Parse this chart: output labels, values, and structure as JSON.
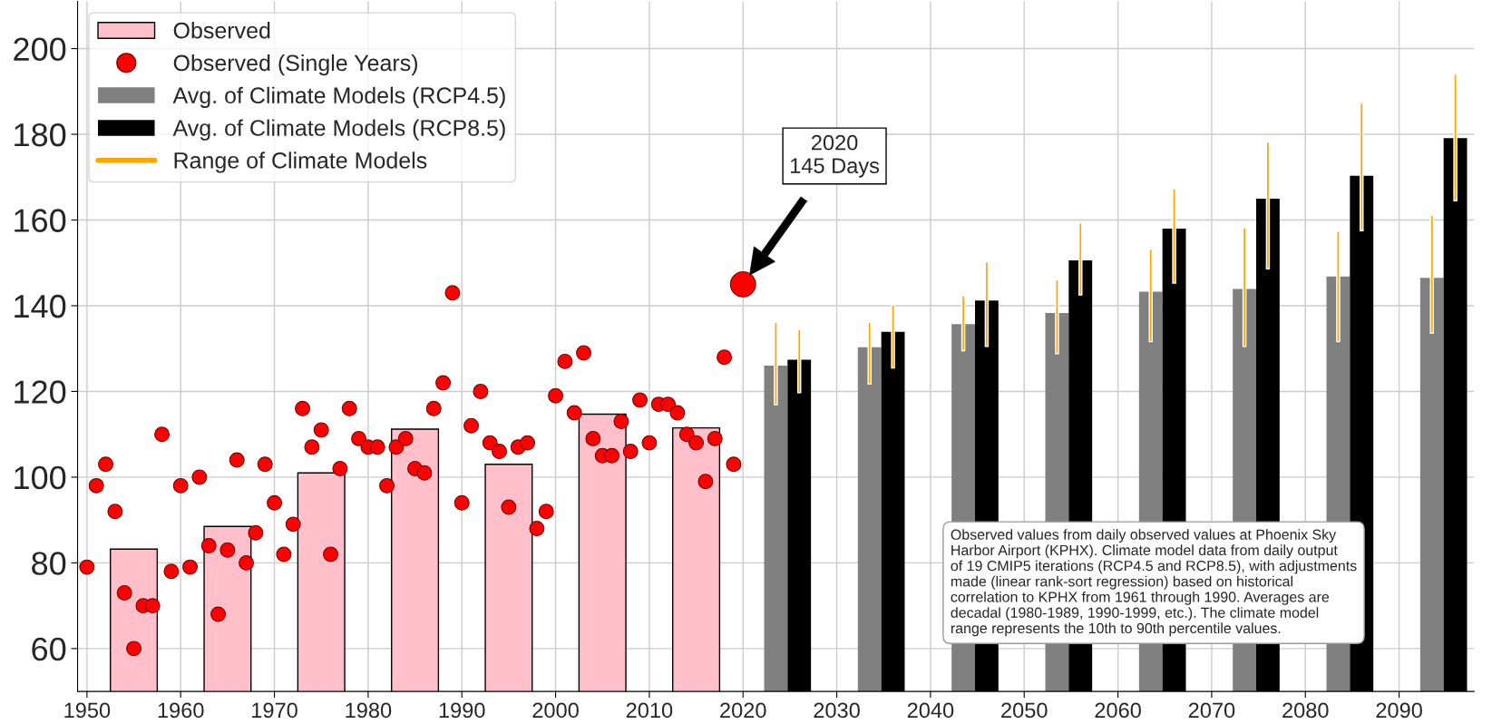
{
  "chart_data": {
    "type": "bar",
    "xlim": [
      1949,
      2098
    ],
    "xticks": [
      1950,
      1960,
      1970,
      1980,
      1990,
      2000,
      2010,
      2020,
      2030,
      2040,
      2050,
      2060,
      2070,
      2080,
      2090
    ],
    "ylim": [
      50,
      211
    ],
    "yticks": [
      60,
      80,
      100,
      120,
      140,
      160,
      180,
      200
    ],
    "grid": true,
    "legend": "top left",
    "series": [
      {
        "name": "Observed",
        "color": "#ffc0cb",
        "x": [
          1955,
          1965,
          1975,
          1985,
          1995,
          2005,
          2015
        ],
        "values": [
          83.2,
          88.5,
          101,
          111.2,
          103,
          114.7,
          111.5
        ]
      },
      {
        "name": "Observed (Single Years)",
        "type": "scatter",
        "marker": "circle",
        "color": "#ff0000",
        "x": [
          1950,
          1951,
          1952,
          1953,
          1954,
          1955,
          1956,
          1957,
          1958,
          1959,
          1960,
          1961,
          1962,
          1963,
          1964,
          1965,
          1966,
          1967,
          1968,
          1969,
          1970,
          1971,
          1972,
          1973,
          1974,
          1975,
          1976,
          1977,
          1978,
          1979,
          1980,
          1981,
          1982,
          1983,
          1984,
          1985,
          1986,
          1987,
          1988,
          1989,
          1990,
          1991,
          1992,
          1993,
          1994,
          1995,
          1996,
          1997,
          1998,
          1999,
          2000,
          2001,
          2002,
          2003,
          2004,
          2005,
          2006,
          2007,
          2008,
          2009,
          2010,
          2011,
          2012,
          2013,
          2014,
          2015,
          2016,
          2017,
          2018,
          2019
        ],
        "values": [
          79,
          98,
          103,
          92,
          73,
          60,
          70,
          70,
          110,
          78,
          98,
          79,
          100,
          84,
          68,
          83,
          104,
          80,
          87,
          103,
          94,
          82,
          89,
          116,
          107,
          111,
          82,
          102,
          116,
          109,
          107,
          107,
          98,
          107,
          109,
          102,
          101,
          116,
          122,
          143,
          94,
          112,
          120,
          108,
          106,
          93,
          107,
          108,
          88,
          92,
          119,
          127,
          115,
          129,
          109,
          105,
          105,
          113,
          106,
          118,
          108,
          117,
          117,
          115,
          110,
          108,
          99,
          109,
          128,
          103
        ]
      },
      {
        "type": "bubble",
        "marker": "circle",
        "color": "#ff0000",
        "x": [
          2020
        ],
        "values": [
          145
        ],
        "sizes": [
          1
        ]
      },
      {
        "name": "Avg. of Climate Models (RCP4.5)",
        "color": "#808080",
        "x": [
          2023.5,
          2033.5,
          2043.5,
          2053.5,
          2063.5,
          2073.5,
          2083.5,
          2093.5
        ],
        "values": [
          126,
          130.3,
          135.7,
          138.3,
          143.3,
          143.9,
          146.8,
          146.5
        ]
      },
      {
        "name": "Avg. of Climate Models (RCP8.5)",
        "color": "#000000",
        "x": [
          2026,
          2036,
          2046,
          2056,
          2066,
          2076,
          2086,
          2096
        ],
        "values": [
          127.4,
          133.9,
          141.2,
          150.6,
          158,
          165,
          170.3,
          179.1
        ]
      },
      {
        "name": "Range of Climate Models",
        "color": "#ffa500",
        "x": [
          2023.5,
          2026,
          2033.5,
          2036,
          2043.5,
          2046,
          2053.5,
          2056,
          2063.5,
          2066,
          2073.5,
          2076,
          2083.5,
          2086,
          2093.5,
          2096
        ],
        "base": [
          116.9,
          119.7,
          121.7,
          125.5,
          129.5,
          130.5,
          128.8,
          142.5,
          131.6,
          145.3,
          130.5,
          148.6,
          131.6,
          157.5,
          133.6,
          164.5
        ],
        "values": [
          19.2,
          14.7,
          14.4,
          14.7,
          12.8,
          19.7,
          17.3,
          16.8,
          21.6,
          22,
          27.7,
          29.6,
          25.8,
          29.8,
          27.5,
          29.5
        ]
      }
    ],
    "annotations": [
      "2020\n145 Days",
      "Observed values from daily observed values at Phoenix Sky\nHarbor Airport (KPHX). Climate model data from daily output\nof 19 CMIP5 iterations (RCP4.5 and RCP8.5), with adjustments\nmade (linear rank-sort regression) based on historical\ncorrelation to KPHX from 1961 through 1990. Averages are\ndecadal (1980-1989, 1990-1999, etc.). The climate model\nrange represents the 10th to 90th percentile values."
    ]
  }
}
